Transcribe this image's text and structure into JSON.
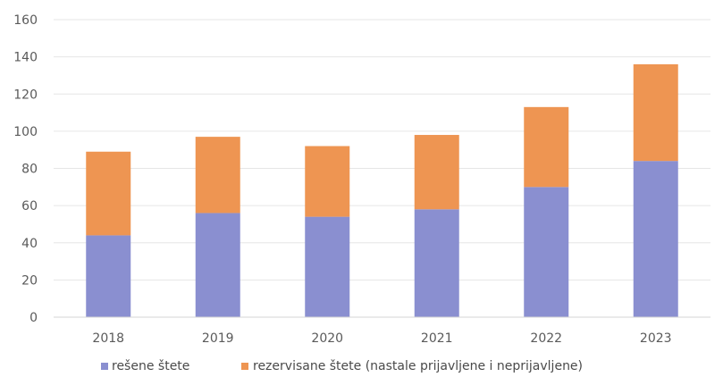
{
  "chart_data": {
    "type": "bar",
    "stacked": true,
    "categories": [
      "2018",
      "2019",
      "2020",
      "2021",
      "2022",
      "2023"
    ],
    "series": [
      {
        "name": "rešene štete",
        "color": "#8a8fd0",
        "values": [
          44,
          56,
          54,
          58,
          70,
          84
        ]
      },
      {
        "name": "rezervisane štete (nastale prijavljene i neprijavljene)",
        "color": "#ee9552",
        "values": [
          45,
          41,
          38,
          40,
          43,
          52
        ]
      }
    ],
    "title": "",
    "xlabel": "",
    "ylabel": "",
    "ylim": [
      0,
      160
    ],
    "yticks": [
      "0",
      "20",
      "40",
      "60",
      "80",
      "100",
      "120",
      "140",
      "160"
    ],
    "grid": true,
    "legend_position": "bottom"
  }
}
